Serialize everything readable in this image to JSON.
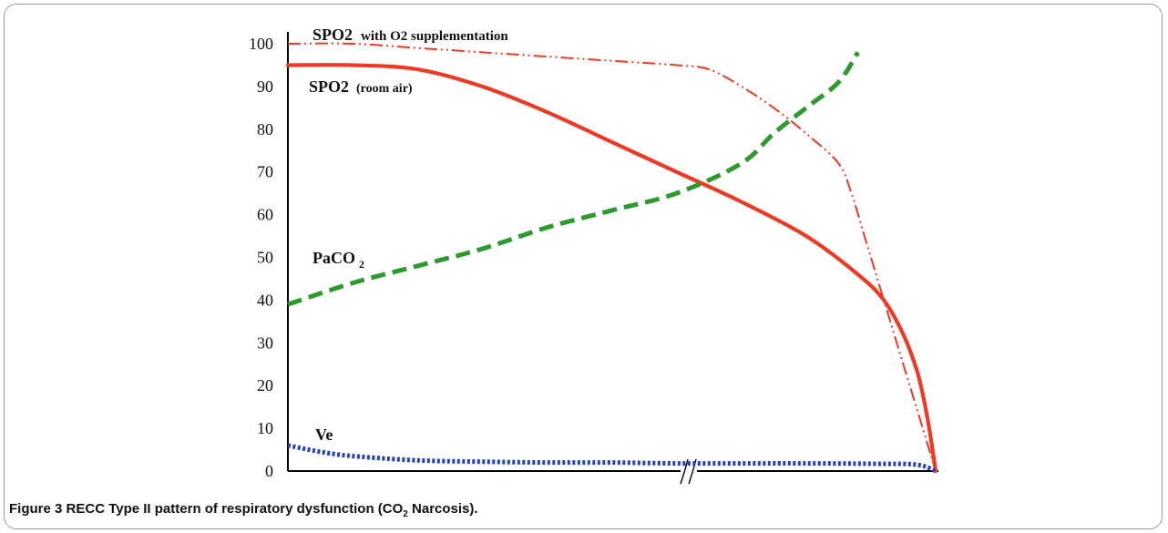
{
  "chart_data": {
    "type": "line",
    "x": [
      0,
      0.1,
      0.2,
      0.3,
      0.4,
      0.5,
      0.6,
      0.7,
      0.75,
      0.8,
      0.85,
      0.9,
      0.93,
      0.95,
      0.97,
      0.98,
      0.99,
      1.0
    ],
    "yticks": [
      "0",
      "10",
      "20",
      "30",
      "40",
      "50",
      "60",
      "70",
      "80",
      "90",
      "100"
    ],
    "ylim": [
      0,
      100
    ],
    "axis_break": "x",
    "series": [
      {
        "name": "SPO2 with O2 supplementation",
        "color": "#ee3a24",
        "style": "dash-dot-dot",
        "points": [
          [
            0,
            100
          ],
          [
            0.1,
            100
          ],
          [
            0.2,
            99
          ],
          [
            0.3,
            98
          ],
          [
            0.4,
            97
          ],
          [
            0.5,
            96
          ],
          [
            0.6,
            95
          ],
          [
            0.65,
            94
          ],
          [
            0.7,
            90
          ],
          [
            0.75,
            85
          ],
          [
            0.8,
            79
          ],
          [
            0.85,
            72
          ],
          [
            0.87,
            65
          ],
          [
            0.89,
            55
          ],
          [
            0.91,
            45
          ],
          [
            0.93,
            35
          ],
          [
            0.95,
            25
          ],
          [
            0.97,
            15
          ],
          [
            0.99,
            5
          ],
          [
            1.0,
            0
          ]
        ]
      },
      {
        "name": "SPO2 (room air)",
        "color": "#ee3a24",
        "style": "solid",
        "points": [
          [
            0,
            95
          ],
          [
            0.1,
            95
          ],
          [
            0.2,
            94
          ],
          [
            0.3,
            90
          ],
          [
            0.4,
            84
          ],
          [
            0.5,
            77
          ],
          [
            0.6,
            70
          ],
          [
            0.7,
            63
          ],
          [
            0.8,
            55
          ],
          [
            0.88,
            46
          ],
          [
            0.92,
            40
          ],
          [
            0.95,
            32
          ],
          [
            0.97,
            24
          ],
          [
            0.98,
            18
          ],
          [
            0.99,
            10
          ],
          [
            1.0,
            0
          ]
        ]
      },
      {
        "name": "PaCO2",
        "color": "#2e9a2e",
        "style": "dashed",
        "points": [
          [
            0,
            39
          ],
          [
            0.1,
            44
          ],
          [
            0.2,
            48
          ],
          [
            0.3,
            52
          ],
          [
            0.4,
            57
          ],
          [
            0.5,
            61
          ],
          [
            0.6,
            65
          ],
          [
            0.7,
            72
          ],
          [
            0.75,
            79
          ],
          [
            0.8,
            85
          ],
          [
            0.85,
            91
          ],
          [
            0.88,
            98
          ]
        ]
      },
      {
        "name": "Ve",
        "color": "#1f3fc6",
        "style": "dotted",
        "points": [
          [
            0,
            6
          ],
          [
            0.05,
            4.5
          ],
          [
            0.1,
            3.5
          ],
          [
            0.2,
            2.5
          ],
          [
            0.3,
            2.2
          ],
          [
            0.4,
            2
          ],
          [
            0.5,
            2
          ],
          [
            0.6,
            1.8
          ],
          [
            0.7,
            1.8
          ],
          [
            0.8,
            1.8
          ],
          [
            0.9,
            1.7
          ],
          [
            0.97,
            1.5
          ],
          [
            1.0,
            0
          ]
        ]
      }
    ],
    "labels": {
      "spo2_o2_main": "SPO2",
      "spo2_o2_rest": "with O2 supplementation",
      "spo2_air_main": "SPO2",
      "spo2_air_rest": "(room air)",
      "paco2_main": "PaCO",
      "paco2_sub": "2",
      "ve": "Ve"
    }
  },
  "caption": {
    "figure_label": "Figure 3",
    "text_before": "RECC Type II pattern of respiratory dysfunction (CO",
    "subscript": "2",
    "text_after": " Narcosis)."
  }
}
